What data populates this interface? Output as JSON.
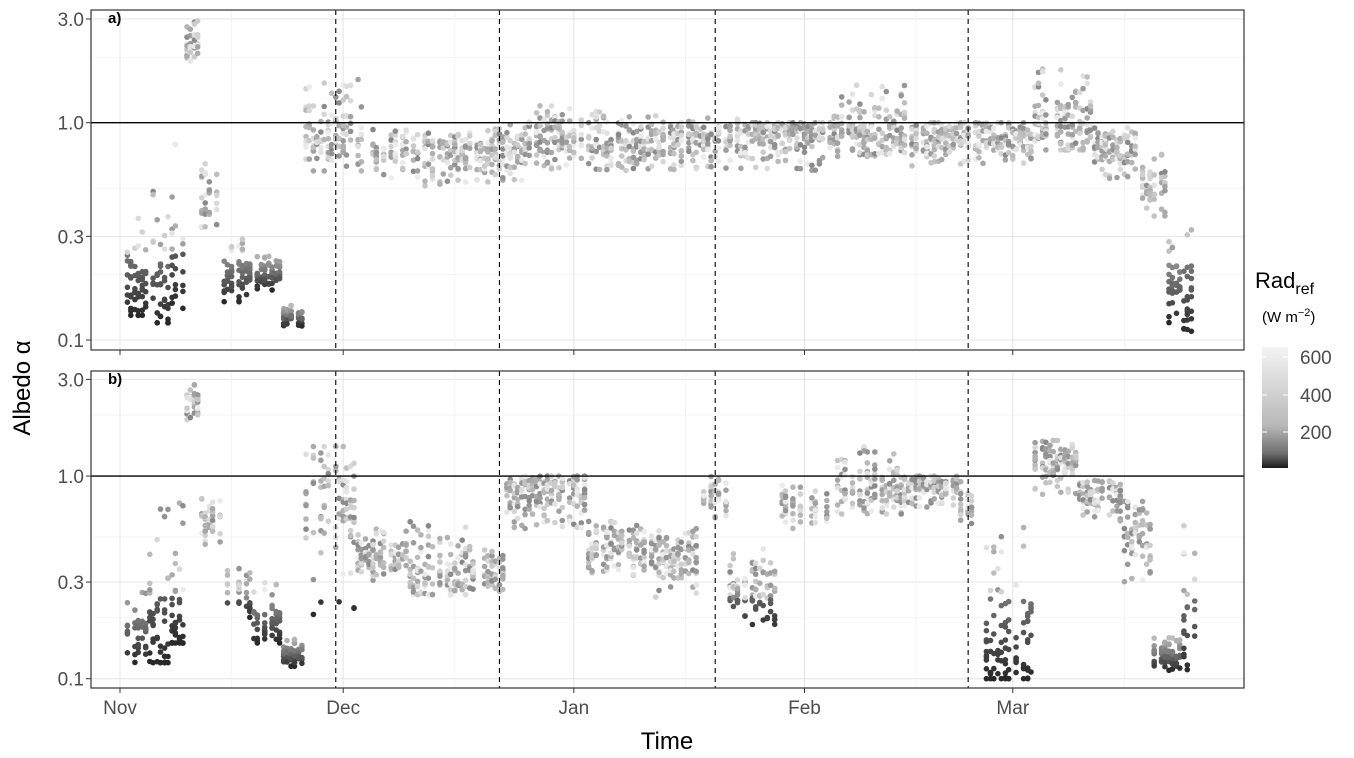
{
  "chart_data": {
    "type": "scatter",
    "xlabel": "Time",
    "ylabel": "Albedo α",
    "x_ticks": [
      "Nov",
      "Dec",
      "Jan",
      "Feb",
      "Mar"
    ],
    "y_scale": "log",
    "y_ticks": [
      "0.1",
      "0.3",
      "1.0",
      "3.0"
    ],
    "ylim": [
      0.09,
      3.3
    ],
    "reference_line_y": 1.0,
    "vertical_dashed_lines": [
      "Nov 30",
      "Dec 22",
      "Jan 20",
      "Feb 23"
    ],
    "grid": true,
    "legend": {
      "title": "Rad",
      "title_subscript": "ref",
      "unit_prefix": "(W m",
      "unit_exponent": "−2",
      "unit_suffix": ")",
      "scale": "grayscale",
      "low_color": "#1a1a1a",
      "high_color": "#f2f2f2",
      "labels": [
        "600",
        "400",
        "200"
      ],
      "placement": "right"
    },
    "panels": [
      {
        "label": "a)",
        "series": [
          {
            "x": "Nov 2",
            "median": 0.17,
            "lo": 0.13,
            "hi": 0.45
          },
          {
            "x": "Nov 5",
            "median": 0.16,
            "lo": 0.12,
            "hi": 0.5
          },
          {
            "x": "Nov 8",
            "median": 0.2,
            "lo": 0.14,
            "hi": 0.85
          },
          {
            "x": "Nov 10",
            "median": 2.2,
            "lo": 1.9,
            "hi": 3.0
          },
          {
            "x": "Nov 12",
            "median": 0.45,
            "lo": 0.3,
            "hi": 0.75
          },
          {
            "x": "Nov 15",
            "median": 0.2,
            "lo": 0.15,
            "hi": 0.3
          },
          {
            "x": "Nov 19",
            "median": 0.2,
            "lo": 0.17,
            "hi": 0.25
          },
          {
            "x": "Nov 23",
            "median": 0.13,
            "lo": 0.115,
            "hi": 0.145
          },
          {
            "x": "Nov 26",
            "median": 0.85,
            "lo": 0.6,
            "hi": 1.6
          },
          {
            "x": "Dec 4",
            "median": 0.75,
            "lo": 0.55,
            "hi": 0.95
          },
          {
            "x": "Dec 12",
            "median": 0.7,
            "lo": 0.5,
            "hi": 0.9
          },
          {
            "x": "Dec 20",
            "median": 0.75,
            "lo": 0.5,
            "hi": 1.0
          },
          {
            "x": "Dec 26",
            "median": 0.85,
            "lo": 0.6,
            "hi": 1.2
          },
          {
            "x": "Jan 5",
            "median": 0.8,
            "lo": 0.6,
            "hi": 1.1
          },
          {
            "x": "Jan 15",
            "median": 0.85,
            "lo": 0.6,
            "hi": 1.05
          },
          {
            "x": "Jan 25",
            "median": 0.9,
            "lo": 0.6,
            "hi": 1.0
          },
          {
            "x": "Feb 5",
            "median": 0.9,
            "lo": 0.7,
            "hi": 1.5
          },
          {
            "x": "Feb 15",
            "median": 0.85,
            "lo": 0.6,
            "hi": 1.0
          },
          {
            "x": "Feb 25",
            "median": 0.85,
            "lo": 0.65,
            "hi": 1.0
          },
          {
            "x": "Mar 4",
            "median": 1.0,
            "lo": 0.75,
            "hi": 1.8
          },
          {
            "x": "Mar 12",
            "median": 0.75,
            "lo": 0.55,
            "hi": 0.95
          },
          {
            "x": "Mar 18",
            "median": 0.5,
            "lo": 0.35,
            "hi": 0.75
          },
          {
            "x": "Mar 22",
            "median": 0.18,
            "lo": 0.12,
            "hi": 0.3
          },
          {
            "x": "Mar 24",
            "median": 0.15,
            "lo": 0.105,
            "hi": 0.45
          }
        ]
      },
      {
        "label": "b)",
        "series": [
          {
            "x": "Nov 2",
            "median": 0.16,
            "lo": 0.12,
            "hi": 0.3
          },
          {
            "x": "Nov 5",
            "median": 0.17,
            "lo": 0.12,
            "hi": 1.0
          },
          {
            "x": "Nov 8",
            "median": 0.2,
            "lo": 0.15,
            "hi": 0.8
          },
          {
            "x": "Nov 10",
            "median": 2.2,
            "lo": 1.8,
            "hi": 2.9
          },
          {
            "x": "Nov 12",
            "median": 0.6,
            "lo": 0.45,
            "hi": 0.8
          },
          {
            "x": "Nov 15",
            "median": 0.28,
            "lo": 0.2,
            "hi": 0.4
          },
          {
            "x": "Nov 19",
            "median": 0.18,
            "lo": 0.15,
            "hi": 0.3
          },
          {
            "x": "Nov 23",
            "median": 0.13,
            "lo": 0.115,
            "hi": 0.16
          },
          {
            "x": "Nov 26",
            "median": 0.8,
            "lo": 0.2,
            "hi": 1.4
          },
          {
            "x": "Dec 3",
            "median": 0.4,
            "lo": 0.3,
            "hi": 0.55
          },
          {
            "x": "Dec 10",
            "median": 0.32,
            "lo": 0.26,
            "hi": 0.6
          },
          {
            "x": "Dec 18",
            "median": 0.32,
            "lo": 0.27,
            "hi": 0.45
          },
          {
            "x": "Dec 23",
            "median": 0.85,
            "lo": 0.55,
            "hi": 1.0
          },
          {
            "x": "Jan 3",
            "median": 0.45,
            "lo": 0.32,
            "hi": 0.6
          },
          {
            "x": "Jan 12",
            "median": 0.4,
            "lo": 0.25,
            "hi": 0.55
          },
          {
            "x": "Jan 18",
            "median": 0.8,
            "lo": 0.6,
            "hi": 1.0
          },
          {
            "x": "Jan 22",
            "median": 0.28,
            "lo": 0.17,
            "hi": 0.45
          },
          {
            "x": "Jan 29",
            "median": 0.7,
            "lo": 0.55,
            "hi": 0.9
          },
          {
            "x": "Feb 5",
            "median": 0.85,
            "lo": 0.65,
            "hi": 1.4
          },
          {
            "x": "Feb 15",
            "median": 0.9,
            "lo": 0.7,
            "hi": 1.0
          },
          {
            "x": "Feb 22",
            "median": 0.75,
            "lo": 0.55,
            "hi": 0.95
          },
          {
            "x": "Feb 25",
            "median": 0.15,
            "lo": 0.1,
            "hi": 0.6
          },
          {
            "x": "Mar 4",
            "median": 1.2,
            "lo": 0.8,
            "hi": 1.5
          },
          {
            "x": "Mar 10",
            "median": 0.8,
            "lo": 0.6,
            "hi": 0.95
          },
          {
            "x": "Mar 16",
            "median": 0.55,
            "lo": 0.3,
            "hi": 0.75
          },
          {
            "x": "Mar 20",
            "median": 0.13,
            "lo": 0.11,
            "hi": 0.16
          },
          {
            "x": "Mar 24",
            "median": 0.2,
            "lo": 0.105,
            "hi": 0.6
          }
        ]
      }
    ]
  }
}
